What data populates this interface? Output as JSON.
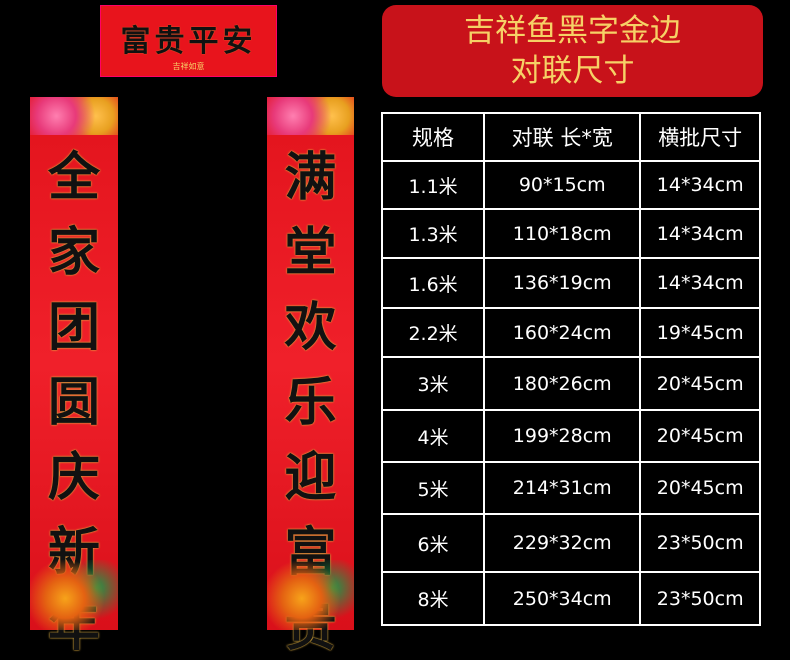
{
  "banner": {
    "text": "富贵平安",
    "stamp": "吉祥如意"
  },
  "couplets": {
    "left": "全家团圆庆新年",
    "right": "满堂欢乐迎富贵"
  },
  "title": {
    "line1": "吉祥鱼黑字金边",
    "line2": "对联尺寸"
  },
  "table": {
    "headers": [
      "规格",
      "对联 长*宽",
      "横批尺寸"
    ],
    "rows": [
      [
        "1.1米",
        "90*15cm",
        "14*34cm"
      ],
      [
        "1.3米",
        "110*18cm",
        "14*34cm"
      ],
      [
        "1.6米",
        "136*19cm",
        "14*34cm"
      ],
      [
        "2.2米",
        "160*24cm",
        "19*45cm"
      ],
      [
        "3米",
        "180*26cm",
        "20*45cm"
      ],
      [
        "4米",
        "199*28cm",
        "20*45cm"
      ],
      [
        "5米",
        "214*31cm",
        "20*45cm"
      ],
      [
        "6米",
        "229*32cm",
        "23*50cm"
      ],
      [
        "8米",
        "250*34cm",
        "23*50cm"
      ]
    ]
  },
  "colors": {
    "background": "#000000",
    "red": "#e2131c",
    "title_box": "#c8121a",
    "gold": "#f6d166"
  }
}
